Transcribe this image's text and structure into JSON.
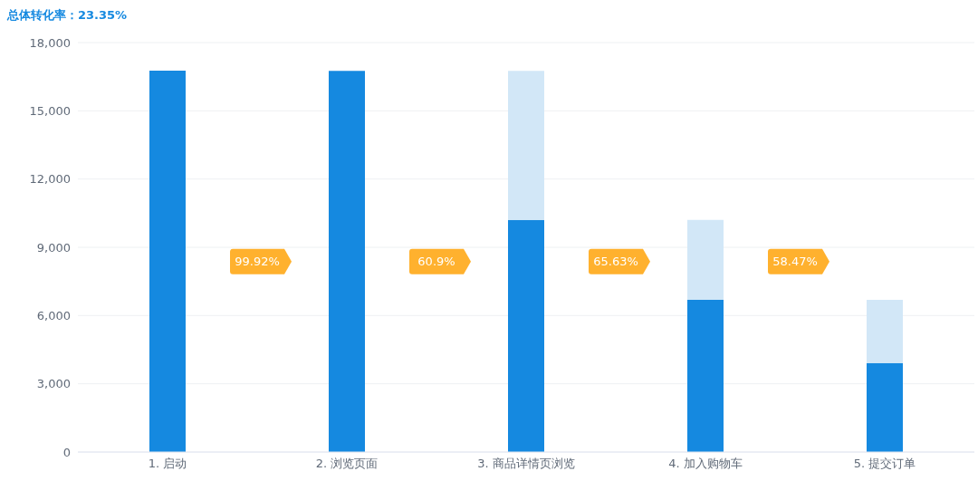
{
  "chart_data": {
    "type": "bar",
    "title": "总体转化率：23.35%",
    "categories": [
      "1. 启动",
      "2. 浏览页面",
      "3. 商品详情页浏览",
      "4. 加入购物车",
      "5. 提交订单"
    ],
    "stacked": true,
    "series": [
      {
        "color": "#1589e0",
        "values": [
          16770,
          16760,
          10200,
          6690,
          3910
        ]
      },
      {
        "color": "#d2e7f7",
        "values": [
          null,
          null,
          6560,
          3510,
          2780
        ]
      }
    ],
    "ylim": [
      0,
      18000
    ],
    "yticks": [
      {
        "value": 0,
        "label": "0"
      },
      {
        "value": 3000,
        "label": "3,000"
      },
      {
        "value": 6000,
        "label": "6,000"
      },
      {
        "value": 9000,
        "label": "9,000"
      },
      {
        "value": 12000,
        "label": "12,000"
      },
      {
        "value": 15000,
        "label": "15,000"
      },
      {
        "value": 18000,
        "label": "18,000"
      }
    ],
    "grid": "y",
    "annotations": [
      "99.92%",
      "60.9%",
      "65.63%",
      "58.47%"
    ]
  }
}
